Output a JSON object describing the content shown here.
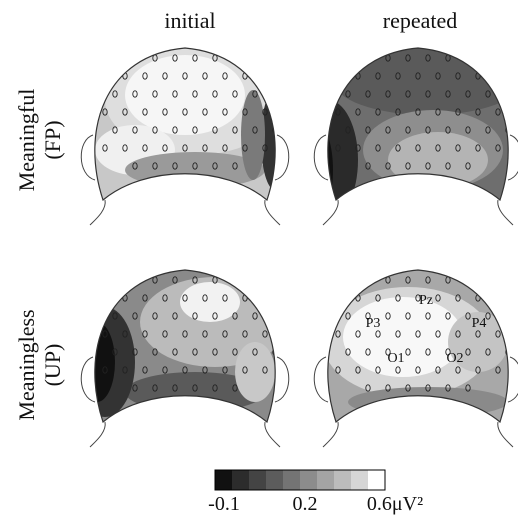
{
  "columns": [
    "initial",
    "repeated"
  ],
  "rows": [
    {
      "label": "Meaningful",
      "sublabel": "(FP)"
    },
    {
      "label": "Meaningless",
      "sublabel": "(UP)"
    }
  ],
  "electrode_labels": [
    "Pz",
    "P3",
    "P4",
    "O1",
    "O2"
  ],
  "colorbar": {
    "labels": [
      "-0.1",
      "0.2",
      "0.6μV²"
    ]
  }
}
